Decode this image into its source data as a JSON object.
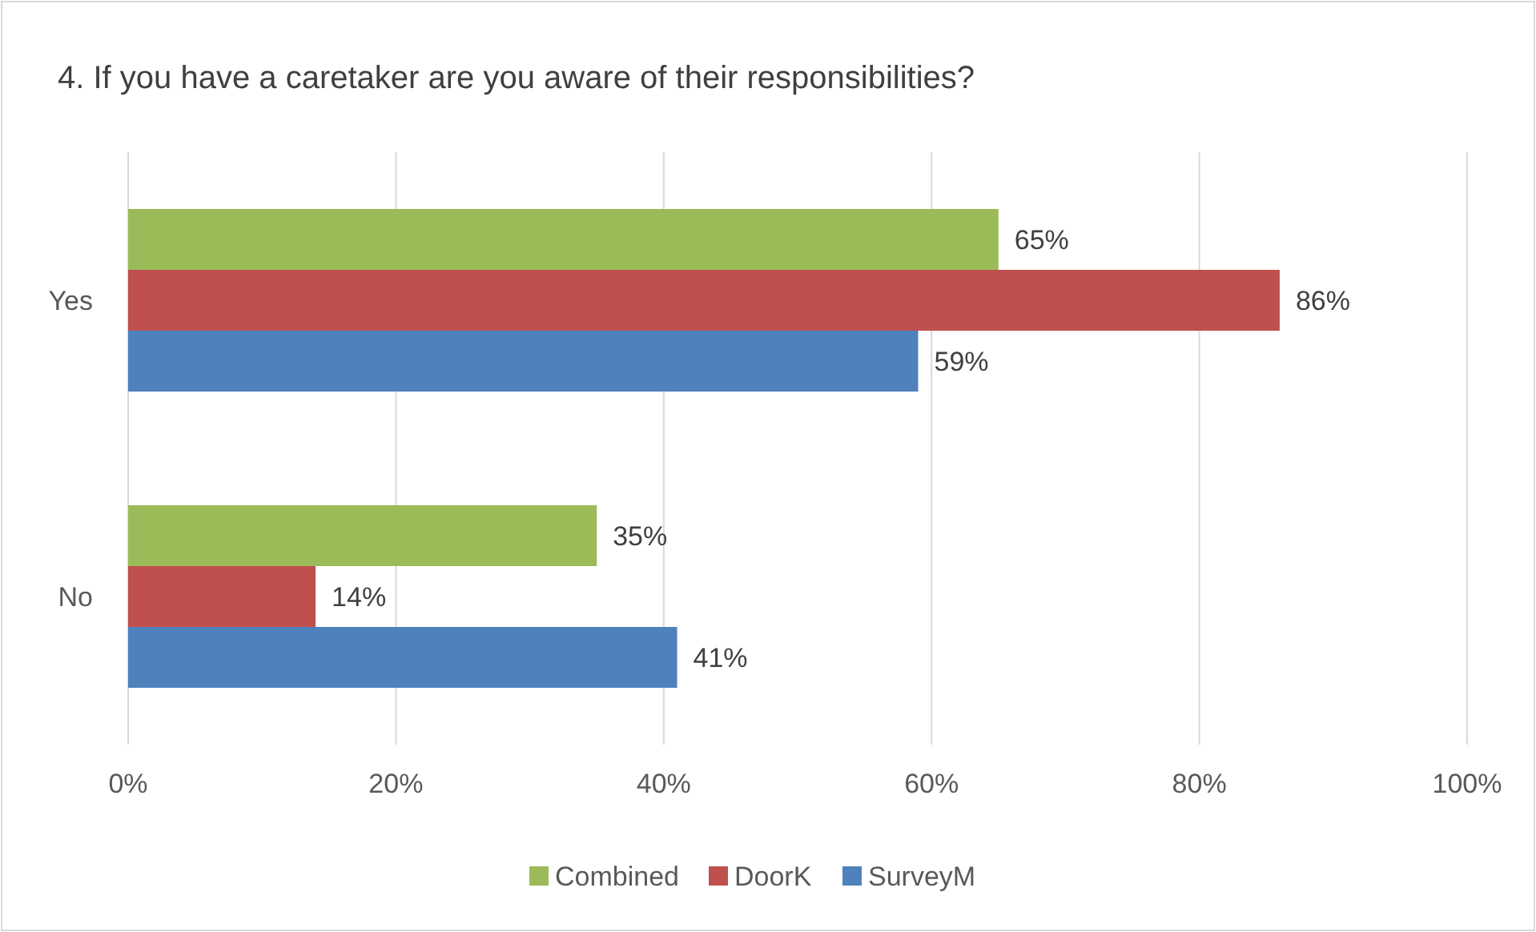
{
  "chart_data": {
    "type": "bar",
    "orientation": "horizontal",
    "title": "4. If you have a caretaker are you aware of their responsibilities?",
    "categories": [
      "Yes",
      "No"
    ],
    "series": [
      {
        "name": "Combined",
        "color": "#9bbb59",
        "values": [
          65,
          35
        ],
        "value_labels": [
          "65%",
          "35%"
        ]
      },
      {
        "name": "DoorK",
        "color": "#c0504d",
        "values": [
          86,
          14
        ],
        "value_labels": [
          "86%",
          "14%"
        ]
      },
      {
        "name": "SurveyM",
        "color": "#4f81bd",
        "values": [
          59,
          41
        ],
        "value_labels": [
          "59%",
          "41%"
        ]
      }
    ],
    "xlim": [
      0,
      100
    ],
    "xticks": [
      {
        "value": 0,
        "label": "0%"
      },
      {
        "value": 20,
        "label": "20%"
      },
      {
        "value": 40,
        "label": "40%"
      },
      {
        "value": 60,
        "label": "60%"
      },
      {
        "value": 80,
        "label": "80%"
      },
      {
        "value": 100,
        "label": "100%"
      }
    ],
    "grid": "x",
    "legend": "bottom"
  }
}
